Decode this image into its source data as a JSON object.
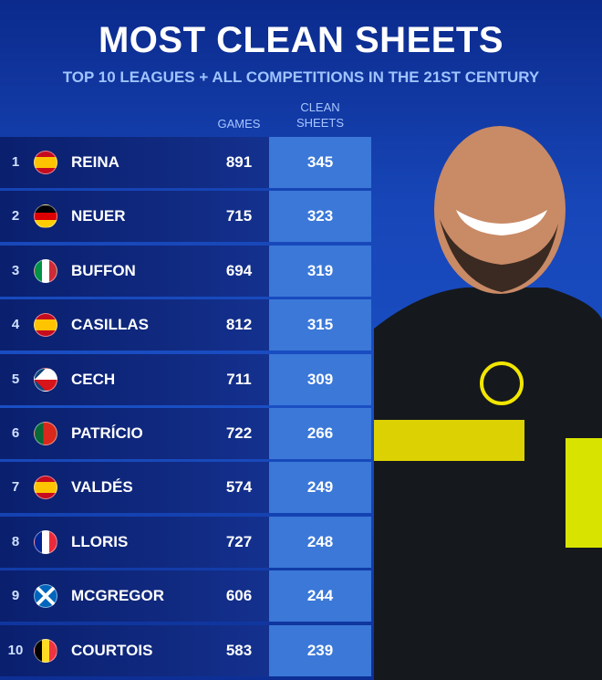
{
  "header": {
    "title": "MOST CLEAN SHEETS",
    "subtitle": "TOP 10 LEAGUES + ALL COMPETITIONS IN THE 21ST CENTURY"
  },
  "table": {
    "columns": [
      "GAMES",
      "CLEAN SHEETS"
    ],
    "rows": [
      [
        1,
        "REINA",
        891,
        345
      ],
      [
        2,
        "NEUER",
        715,
        323
      ],
      [
        3,
        "BUFFON",
        694,
        319
      ],
      [
        4,
        "CASILLAS",
        812,
        315
      ],
      [
        5,
        "CECH",
        711,
        309
      ],
      [
        6,
        "PATRÍCIO",
        722,
        266
      ],
      [
        7,
        "VALDÉS",
        574,
        249
      ],
      [
        8,
        "LLORIS",
        727,
        248
      ],
      [
        9,
        "MCGREGOR",
        606,
        244
      ],
      [
        10,
        "COURTOIS",
        583,
        239
      ]
    ]
  }
}
